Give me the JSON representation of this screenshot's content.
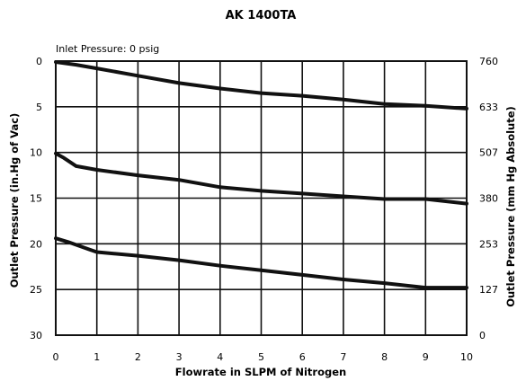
{
  "chart_data": {
    "type": "line",
    "title": "AK 1400TA",
    "annotation": "Inlet Pressure: 0 psig",
    "xlabel": "Flowrate in SLPM of Nitrogen",
    "ylabel": "Outlet Pressure (in.Hg of Vac)",
    "ylabel_right": "Outlet Pressure (mm Hg Absolute)",
    "xlim": [
      0,
      10
    ],
    "ylim": [
      0,
      30
    ],
    "y_inverted": true,
    "grid": true,
    "x_ticks": [
      "0",
      "1",
      "2",
      "3",
      "4",
      "5",
      "6",
      "7",
      "8",
      "9",
      "10"
    ],
    "y_ticks": [
      "0",
      "5",
      "10",
      "15",
      "20",
      "25",
      "30"
    ],
    "y_ticks_right": [
      "760",
      "633",
      "507",
      "380",
      "253",
      "127",
      "0"
    ],
    "series": [
      {
        "x": [
          0,
          0.5,
          1,
          2,
          3,
          4,
          5,
          6,
          7,
          8,
          9,
          10
        ],
        "y": [
          0.1,
          0.4,
          0.8,
          1.6,
          2.4,
          3.0,
          3.5,
          3.8,
          4.2,
          4.7,
          4.9,
          5.2
        ]
      },
      {
        "x": [
          0,
          0.2,
          0.5,
          1,
          2,
          3,
          4,
          5,
          6,
          7,
          8,
          9,
          10
        ],
        "y": [
          10.1,
          10.6,
          11.5,
          11.9,
          12.5,
          13.0,
          13.8,
          14.2,
          14.5,
          14.8,
          15.1,
          15.1,
          15.6
        ]
      },
      {
        "x": [
          0,
          0.3,
          0.8,
          1,
          2,
          3,
          4,
          5,
          6,
          7,
          8,
          9,
          10
        ],
        "y": [
          19.4,
          19.8,
          20.6,
          20.9,
          21.3,
          21.8,
          22.4,
          22.9,
          23.4,
          23.9,
          24.3,
          24.8,
          24.8
        ]
      }
    ]
  }
}
